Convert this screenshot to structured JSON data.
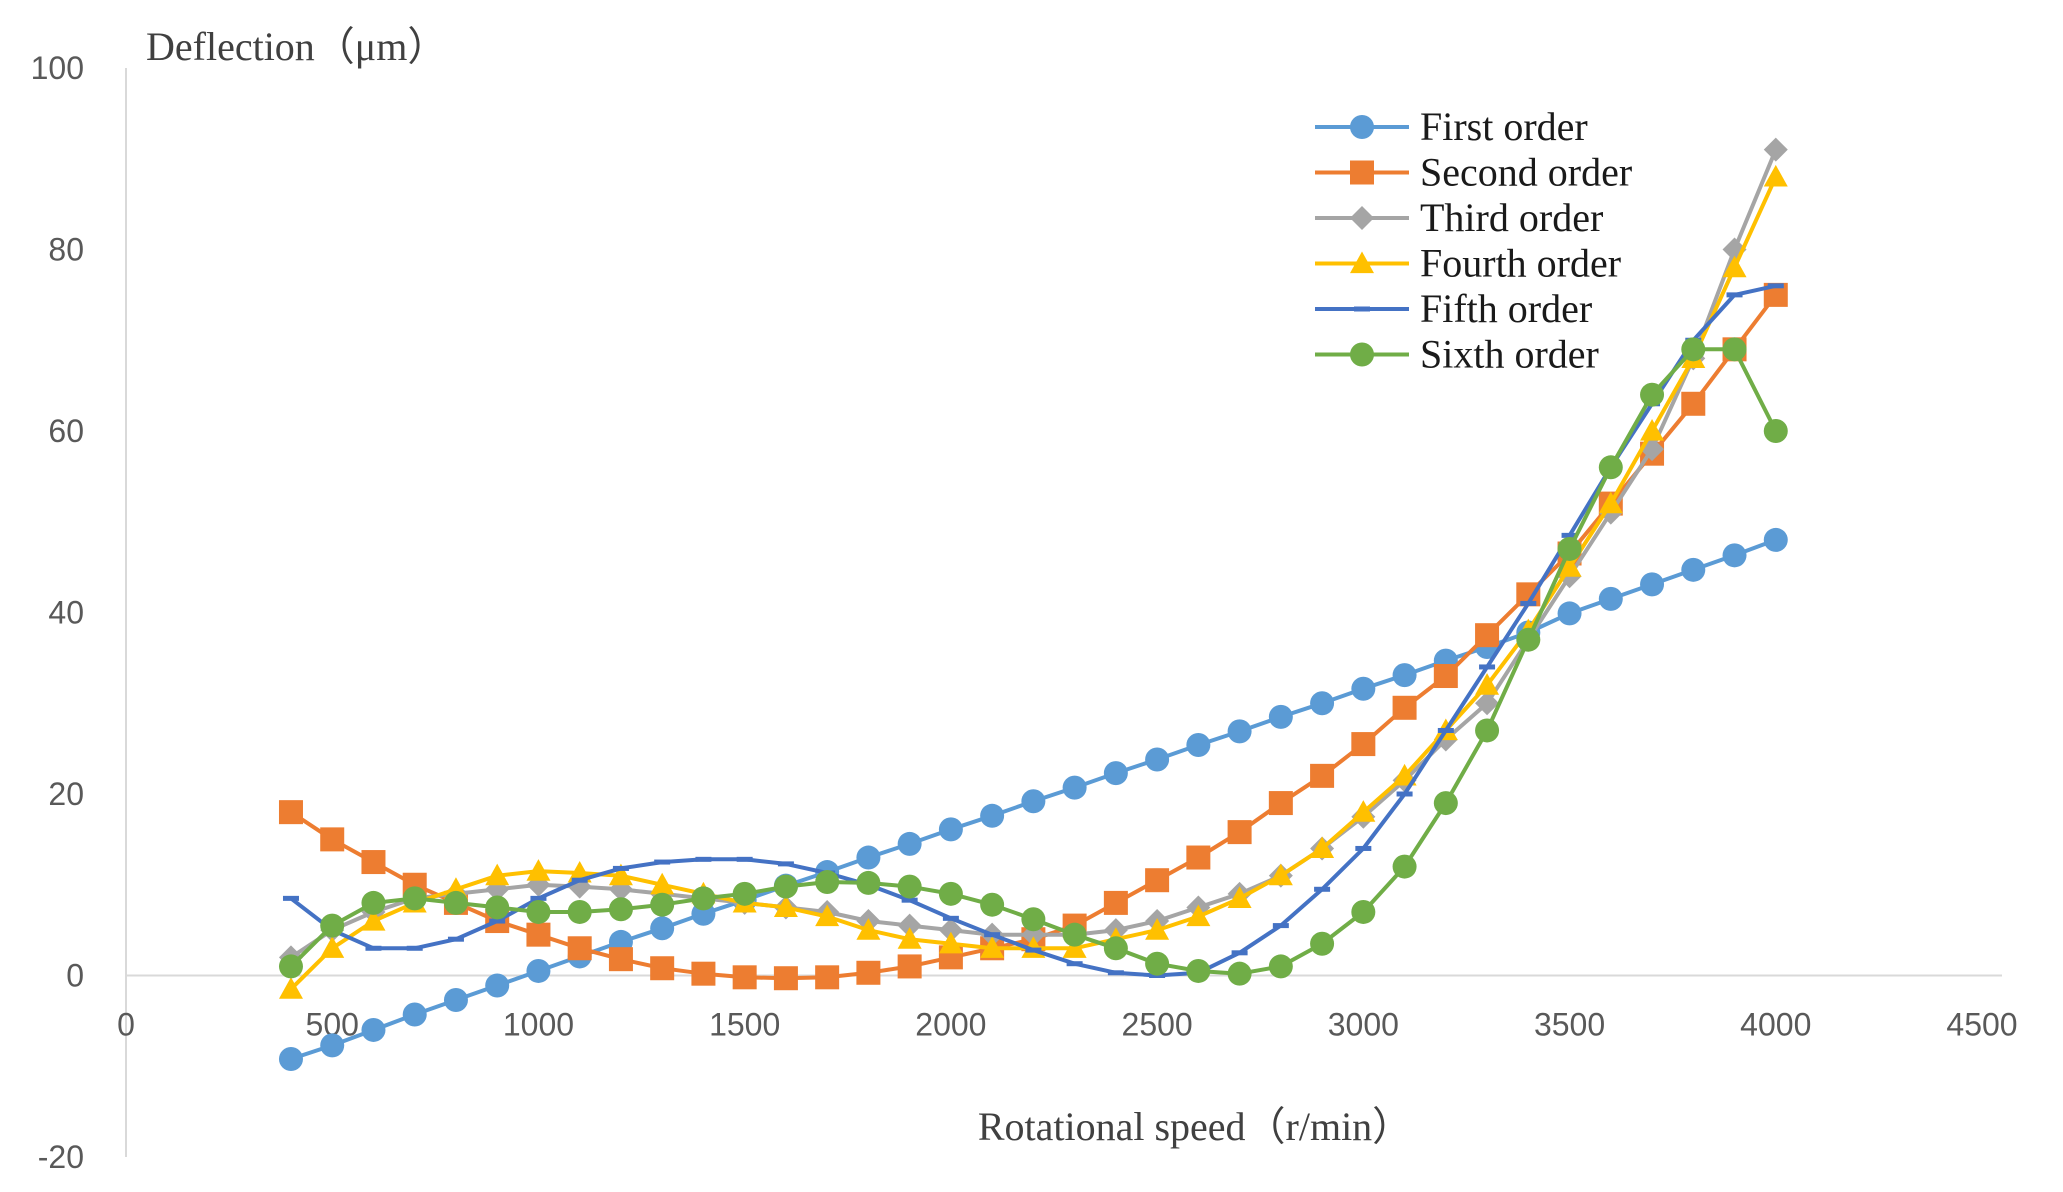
{
  "chart_data": {
    "type": "line",
    "title": "",
    "xlabel": "Rotational speed（r/min）",
    "ylabel": "Deflection（μm）",
    "xlim": [
      0,
      4500
    ],
    "ylim": [
      -20,
      100
    ],
    "xticks": [
      0,
      500,
      1000,
      1500,
      2000,
      2500,
      3000,
      3500,
      4000,
      4500
    ],
    "yticks": [
      -20,
      0,
      20,
      40,
      60,
      80,
      100
    ],
    "xtick_labels": [
      "0",
      "500",
      "1000",
      "1500",
      "2000",
      "2500",
      "3000",
      "3500",
      "4000",
      "4500"
    ],
    "ytick_labels": [
      "-20",
      "0",
      "20",
      "40",
      "60",
      "80",
      "100"
    ],
    "grid": false,
    "legend_position": "top-right",
    "x": [
      400,
      500,
      600,
      700,
      800,
      900,
      1000,
      1100,
      1200,
      1300,
      1400,
      1500,
      1600,
      1700,
      1800,
      1900,
      2000,
      2100,
      2200,
      2300,
      2400,
      2500,
      2600,
      2700,
      2800,
      2900,
      3000,
      3100,
      3200,
      3300,
      3400,
      3500,
      3600,
      3700,
      3800,
      3900,
      4000
    ],
    "series": [
      {
        "name": "First order",
        "color": "#5B9BD5",
        "marker": "circle",
        "values": [
          -9.2,
          -7.7,
          -6.0,
          -4.3,
          -2.7,
          -1.1,
          0.5,
          2.1,
          3.7,
          5.2,
          6.8,
          8.3,
          9.9,
          11.4,
          13.0,
          14.5,
          16.1,
          17.6,
          19.2,
          20.7,
          22.3,
          23.8,
          25.4,
          26.9,
          28.5,
          30.0,
          31.6,
          33.1,
          34.7,
          36.2,
          37.8,
          39.9,
          41.5,
          43.1,
          44.7,
          46.3,
          48.0
        ]
      },
      {
        "name": "Second order",
        "color": "#ED7D31",
        "marker": "square",
        "values": [
          18.0,
          15.0,
          12.5,
          10.0,
          8.0,
          6.0,
          4.5,
          3.0,
          1.8,
          0.8,
          0.2,
          -0.2,
          -0.3,
          -0.2,
          0.3,
          1.0,
          2.0,
          3.0,
          4.0,
          5.5,
          8.0,
          10.5,
          13.0,
          15.8,
          19.0,
          22.0,
          25.5,
          29.5,
          33.0,
          37.5,
          42.0,
          46.5,
          52.0,
          57.5,
          63.0,
          69.0,
          75.0
        ]
      },
      {
        "name": "Third order",
        "color": "#A5A5A5",
        "marker": "diamond",
        "values": [
          2.0,
          5.0,
          7.0,
          8.5,
          9.0,
          9.5,
          10.0,
          9.8,
          9.5,
          9.0,
          8.5,
          8.0,
          7.5,
          7.0,
          6.0,
          5.5,
          5.0,
          4.5,
          4.5,
          4.5,
          5.0,
          6.0,
          7.5,
          9.0,
          11.0,
          14.0,
          17.5,
          21.5,
          26.0,
          30.0,
          37.0,
          44.0,
          51.0,
          58.0,
          68.0,
          80.0,
          91.0
        ]
      },
      {
        "name": "Fourth order",
        "color": "#FFC000",
        "marker": "triangle",
        "values": [
          -1.5,
          3.0,
          6.0,
          8.0,
          9.5,
          11.0,
          11.5,
          11.3,
          11.0,
          10.0,
          9.0,
          8.0,
          7.5,
          6.5,
          5.0,
          4.0,
          3.5,
          3.0,
          3.0,
          3.0,
          4.0,
          5.0,
          6.5,
          8.5,
          11.0,
          14.0,
          18.0,
          22.0,
          27.0,
          32.0,
          38.0,
          45.0,
          52.0,
          60.0,
          68.0,
          78.0,
          88.0
        ]
      },
      {
        "name": "Fifth order",
        "color": "#4472C4",
        "marker": "dash",
        "values": [
          8.5,
          5.0,
          3.0,
          3.0,
          4.0,
          6.0,
          8.5,
          10.5,
          11.8,
          12.5,
          12.8,
          12.8,
          12.3,
          11.3,
          10.0,
          8.3,
          6.3,
          4.5,
          2.8,
          1.3,
          0.3,
          0.0,
          0.3,
          2.5,
          5.5,
          9.5,
          14.0,
          20.0,
          27.0,
          34.0,
          41.0,
          48.5,
          56.0,
          63.0,
          70.0,
          75.0,
          76.0
        ]
      },
      {
        "name": "Sixth order",
        "color": "#70AD47",
        "marker": "circle",
        "values": [
          1.0,
          5.5,
          8.0,
          8.5,
          8.0,
          7.5,
          7.0,
          7.0,
          7.3,
          7.8,
          8.5,
          9.0,
          9.8,
          10.3,
          10.2,
          9.8,
          9.0,
          7.8,
          6.2,
          4.5,
          3.0,
          1.3,
          0.5,
          0.2,
          1.0,
          3.5,
          7.0,
          12.0,
          19.0,
          27.0,
          37.0,
          47.0,
          56.0,
          64.0,
          69.0,
          69.0,
          60.0
        ]
      }
    ]
  }
}
